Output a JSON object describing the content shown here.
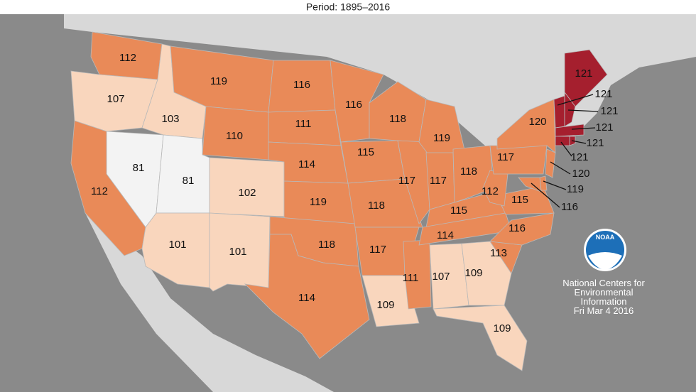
{
  "header": {
    "title": "Period: 1895–2016"
  },
  "map": {
    "regions": [
      {
        "value": 112,
        "color": "#e98a58"
      },
      {
        "value": 107,
        "color": "#f9d6bd"
      },
      {
        "value": 103,
        "color": "#f9d6bd"
      },
      {
        "value": 119,
        "color": "#e98a58"
      },
      {
        "value": 110,
        "color": "#e98a58"
      },
      {
        "value": 81,
        "color": "#f3f3f3"
      },
      {
        "value": 112,
        "color": "#e98a58"
      },
      {
        "value": 81,
        "color": "#f3f3f3"
      },
      {
        "value": 102,
        "color": "#f9d6bd"
      },
      {
        "value": 101,
        "color": "#f9d6bd"
      },
      {
        "value": 101,
        "color": "#f9d6bd"
      },
      {
        "value": 116,
        "color": "#e98a58"
      },
      {
        "value": 111,
        "color": "#e98a58"
      },
      {
        "value": 114,
        "color": "#e98a58"
      },
      {
        "value": 119,
        "color": "#e98a58"
      },
      {
        "value": 118,
        "color": "#e98a58"
      },
      {
        "value": 114,
        "color": "#e98a58"
      },
      {
        "value": 116,
        "color": "#e98a58"
      },
      {
        "value": 115,
        "color": "#e98a58"
      },
      {
        "value": 118,
        "color": "#e98a58"
      },
      {
        "value": 117,
        "color": "#e98a58"
      },
      {
        "value": 109,
        "color": "#f9d6bd"
      },
      {
        "value": 118,
        "color": "#e98a58"
      },
      {
        "value": 117,
        "color": "#e98a58"
      },
      {
        "value": 111,
        "color": "#e98a58"
      },
      {
        "value": 119,
        "color": "#e98a58"
      },
      {
        "value": 117,
        "color": "#e98a58"
      },
      {
        "value": 118,
        "color": "#e98a58"
      },
      {
        "value": 115,
        "color": "#e98a58"
      },
      {
        "value": 114,
        "color": "#e98a58"
      },
      {
        "value": 107,
        "color": "#f9d6bd"
      },
      {
        "value": 109,
        "color": "#f9d6bd"
      },
      {
        "value": 109,
        "color": "#f9d6bd"
      },
      {
        "value": 113,
        "color": "#e98a58"
      },
      {
        "value": 116,
        "color": "#e98a58"
      },
      {
        "value": 115,
        "color": "#e98a58"
      },
      {
        "value": 112,
        "color": "#e98a58"
      },
      {
        "value": 117,
        "color": "#e98a58"
      },
      {
        "value": 120,
        "color": "#e98a58"
      },
      {
        "value": 121,
        "color": "#a51f2e"
      },
      {
        "value": 121,
        "color": "#a51f2e"
      },
      {
        "value": 121,
        "color": "#a51f2e"
      },
      {
        "value": 121,
        "color": "#a51f2e"
      },
      {
        "value": 121,
        "color": "#a51f2e"
      },
      {
        "value": 121,
        "color": "#a51f2e"
      },
      {
        "value": 120,
        "color": "#e98a58"
      },
      {
        "value": 119,
        "color": "#e98a58"
      },
      {
        "value": 116,
        "color": "#e98a58"
      }
    ]
  },
  "credit": {
    "logo": "NOAA",
    "lines": [
      "National Centers for",
      "Environmental",
      "Information",
      "Fri Mar  4 2016"
    ]
  }
}
